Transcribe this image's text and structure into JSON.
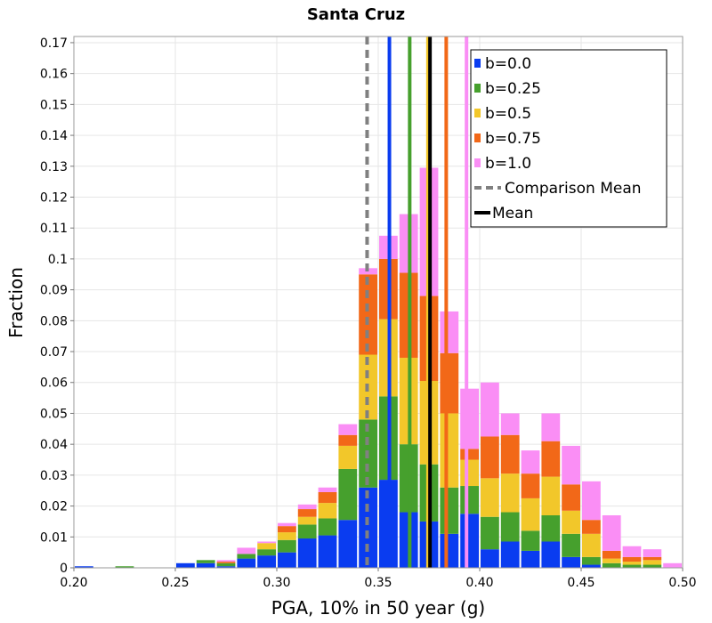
{
  "chart_data": {
    "type": "bar",
    "stacked": true,
    "title": "Santa Cruz",
    "xlabel": "PGA, 10% in 50 year (g)",
    "ylabel": "Fraction",
    "xlim": [
      0.2,
      0.5
    ],
    "ylim": [
      0,
      0.172
    ],
    "x_ticks": [
      "0.20",
      "0.25",
      "0.30",
      "0.35",
      "0.40",
      "0.45",
      "0.50"
    ],
    "x_tick_values": [
      0.2,
      0.25,
      0.3,
      0.35,
      0.4,
      0.45,
      0.5
    ],
    "y_ticks": [
      "0",
      "0.01",
      "0.02",
      "0.03",
      "0.04",
      "0.05",
      "0.06",
      "0.07",
      "0.08",
      "0.09",
      "0.1",
      "0.11",
      "0.12",
      "0.13",
      "0.14",
      "0.15",
      "0.16",
      "0.17"
    ],
    "y_tick_values": [
      0,
      0.01,
      0.02,
      0.03,
      0.04,
      0.05,
      0.06,
      0.07,
      0.08,
      0.09,
      0.1,
      0.11,
      0.12,
      0.13,
      0.14,
      0.15,
      0.16,
      0.17
    ],
    "bin_width": 0.01,
    "bin_start": 0.2,
    "series": [
      {
        "name": "b=0.0",
        "color": "#0a3cf0",
        "values": [
          0.0005,
          0,
          0,
          0,
          0,
          0.0015,
          0.0015,
          0.0005,
          0.003,
          0.004,
          0.005,
          0.0095,
          0.0105,
          0.0155,
          0.026,
          0.0285,
          0.018,
          0.015,
          0.011,
          0.0175,
          0.006,
          0.0085,
          0.0055,
          0.0085,
          0.0035,
          0.001,
          0,
          0,
          0,
          0
        ]
      },
      {
        "name": "b=0.25",
        "color": "#46a02d",
        "values": [
          0,
          0,
          0.0005,
          0,
          0,
          0,
          0.001,
          0.001,
          0.0015,
          0.002,
          0.004,
          0.0045,
          0.0055,
          0.0165,
          0.022,
          0.027,
          0.022,
          0.0185,
          0.015,
          0.009,
          0.0105,
          0.0095,
          0.0065,
          0.0085,
          0.0075,
          0.0025,
          0.0015,
          0.001,
          0.001,
          0
        ]
      },
      {
        "name": "b=0.5",
        "color": "#f2c72a",
        "values": [
          0,
          0,
          0,
          0,
          0,
          0,
          0,
          0,
          0,
          0.002,
          0.0025,
          0.0025,
          0.005,
          0.0075,
          0.021,
          0.025,
          0.028,
          0.027,
          0.024,
          0.0085,
          0.0125,
          0.0125,
          0.0105,
          0.0125,
          0.0075,
          0.0075,
          0.0015,
          0.001,
          0.0015,
          0
        ]
      },
      {
        "name": "b=0.75",
        "color": "#f26818",
        "values": [
          0,
          0,
          0,
          0,
          0,
          0,
          0,
          0.0005,
          0,
          0,
          0.002,
          0.0025,
          0.0035,
          0.0035,
          0.026,
          0.0195,
          0.0275,
          0.0275,
          0.0195,
          0.0035,
          0.0135,
          0.0125,
          0.008,
          0.0115,
          0.0085,
          0.0045,
          0.0025,
          0.0015,
          0.001,
          0
        ]
      },
      {
        "name": "b=1.0",
        "color": "#fa8ef5",
        "values": [
          0,
          0,
          0,
          0,
          0,
          0,
          0,
          0.0005,
          0.002,
          0.0005,
          0.001,
          0.0015,
          0.0015,
          0.0035,
          0.002,
          0.0075,
          0.019,
          0.0415,
          0.0135,
          0.0195,
          0.0175,
          0.007,
          0.0075,
          0.009,
          0.0125,
          0.0125,
          0.0115,
          0.0035,
          0.0025,
          0.0015
        ]
      }
    ],
    "vertical_lines": [
      {
        "name": "b=0.0 mean",
        "x": 0.3555,
        "color": "#0a3cf0"
      },
      {
        "name": "b=0.25 mean",
        "x": 0.3655,
        "color": "#46a02d"
      },
      {
        "name": "b=0.5 mean",
        "x": 0.3745,
        "color": "#f2c72a"
      },
      {
        "name": "b=0.75 mean",
        "x": 0.3835,
        "color": "#f26818"
      },
      {
        "name": "b=1.0 mean",
        "x": 0.3935,
        "color": "#fa8ef5"
      },
      {
        "name": "Comparison Mean",
        "x": 0.3445,
        "color": "#808080",
        "dashed": true
      },
      {
        "name": "Mean",
        "x": 0.3755,
        "color": "#000000"
      }
    ],
    "legend": {
      "position": "top-right",
      "entries": [
        {
          "label": "b=0.0",
          "color": "#0a3cf0",
          "symbol": "box"
        },
        {
          "label": "b=0.25",
          "color": "#46a02d",
          "symbol": "box"
        },
        {
          "label": "b=0.5",
          "color": "#f2c72a",
          "symbol": "box"
        },
        {
          "label": "b=0.75",
          "color": "#f26818",
          "symbol": "box"
        },
        {
          "label": "b=1.0",
          "color": "#fa8ef5",
          "symbol": "box"
        },
        {
          "label": "Comparison Mean",
          "color": "#808080",
          "symbol": "dash"
        },
        {
          "label": "Mean",
          "color": "#000000",
          "symbol": "line"
        }
      ]
    },
    "grid": true
  }
}
